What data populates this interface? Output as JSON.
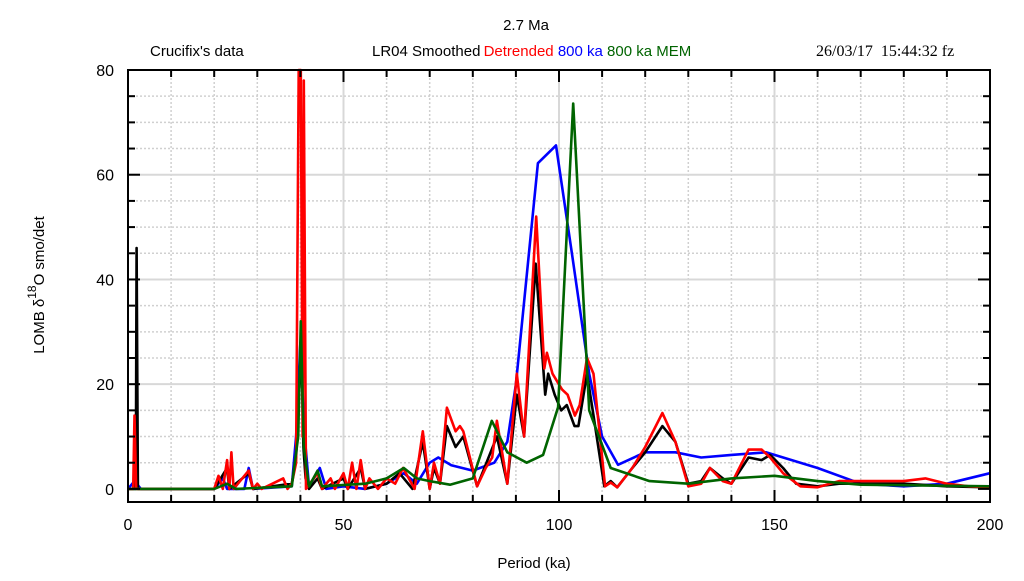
{
  "chart_data": {
    "type": "line",
    "title": "2.7 Ma",
    "left_note": "Crucifix's data",
    "timestamp": "26/03/17  15:44:32 fz",
    "xlabel": "Period (ka)",
    "ylabel_parts": [
      "LOMB δ",
      "18",
      "O smo/det"
    ],
    "xlim": [
      0,
      200
    ],
    "ylim": [
      -2.5,
      80
    ],
    "xticks": [
      0,
      50,
      100,
      150,
      200
    ],
    "yticks": [
      0,
      20,
      40,
      60,
      80
    ],
    "grid": true,
    "legend_position": "top",
    "series": [
      {
        "name": "LR04 Smoothed",
        "color": "#000000",
        "points": [
          [
            0,
            0
          ],
          [
            1.8,
            0
          ],
          [
            2,
            46
          ],
          [
            2.3,
            0
          ],
          [
            20,
            0
          ],
          [
            23,
            4
          ],
          [
            23.5,
            0
          ],
          [
            28,
            3
          ],
          [
            29,
            0
          ],
          [
            38,
            1
          ],
          [
            39,
            6
          ],
          [
            39.8,
            20
          ],
          [
            40.2,
            28
          ],
          [
            40.7,
            8
          ],
          [
            41.2,
            2
          ],
          [
            42,
            0
          ],
          [
            44,
            2
          ],
          [
            45,
            0
          ],
          [
            50,
            2
          ],
          [
            51,
            0
          ],
          [
            54,
            4
          ],
          [
            55,
            0
          ],
          [
            60,
            1
          ],
          [
            63,
            3
          ],
          [
            66,
            0
          ],
          [
            68.4,
            9
          ],
          [
            70,
            0
          ],
          [
            71,
            4
          ],
          [
            72.4,
            1
          ],
          [
            74,
            12
          ],
          [
            76,
            8
          ],
          [
            77.8,
            10
          ],
          [
            81,
            0.5
          ],
          [
            85.6,
            10
          ],
          [
            88,
            1
          ],
          [
            90.2,
            18
          ],
          [
            91.9,
            10
          ],
          [
            94.6,
            43
          ],
          [
            96.8,
            18
          ],
          [
            97.5,
            22
          ],
          [
            99,
            18
          ],
          [
            100.5,
            15
          ],
          [
            101.8,
            16
          ],
          [
            103.6,
            12
          ],
          [
            104.5,
            12
          ],
          [
            106.5,
            22
          ],
          [
            108,
            14
          ],
          [
            110.5,
            0.5
          ],
          [
            112,
            1.5
          ],
          [
            113.5,
            0.3
          ],
          [
            117,
            4
          ],
          [
            120,
            7
          ],
          [
            124,
            12
          ],
          [
            127,
            9
          ],
          [
            130,
            1
          ],
          [
            133,
            1.5
          ],
          [
            135,
            4
          ],
          [
            138,
            2
          ],
          [
            140,
            1
          ],
          [
            144,
            6
          ],
          [
            147,
            5.5
          ],
          [
            149,
            6.5
          ],
          [
            152,
            4
          ],
          [
            155,
            1
          ],
          [
            160,
            0.5
          ],
          [
            165,
            1
          ],
          [
            170,
            1
          ],
          [
            180,
            1
          ],
          [
            190,
            0.5
          ],
          [
            200,
            0.3
          ]
        ]
      },
      {
        "name": "Detrended",
        "color": "#ff0000",
        "points": [
          [
            0,
            0
          ],
          [
            1.2,
            0
          ],
          [
            1.5,
            14
          ],
          [
            1.9,
            0
          ],
          [
            20,
            0
          ],
          [
            21,
            2.5
          ],
          [
            22,
            0
          ],
          [
            23,
            5.5
          ],
          [
            23.5,
            0
          ],
          [
            24,
            7
          ],
          [
            24.5,
            0
          ],
          [
            28,
            3.5
          ],
          [
            29,
            0
          ],
          [
            30,
            1
          ],
          [
            31,
            0
          ],
          [
            36,
            2
          ],
          [
            37,
            0
          ],
          [
            38,
            1
          ],
          [
            39,
            5
          ],
          [
            39.6,
            80
          ],
          [
            40.1,
            80
          ],
          [
            40.5,
            10
          ],
          [
            40.8,
            78
          ],
          [
            41.3,
            0
          ],
          [
            44,
            3
          ],
          [
            45,
            0
          ],
          [
            47,
            2
          ],
          [
            48,
            0
          ],
          [
            50,
            3
          ],
          [
            51,
            0
          ],
          [
            52,
            5
          ],
          [
            53,
            0
          ],
          [
            54,
            5.5
          ],
          [
            55,
            0
          ],
          [
            56,
            2
          ],
          [
            58,
            0
          ],
          [
            60,
            2
          ],
          [
            62,
            1
          ],
          [
            63.8,
            4
          ],
          [
            66.5,
            0
          ],
          [
            68.4,
            11
          ],
          [
            70,
            0
          ],
          [
            71,
            5
          ],
          [
            72.4,
            1
          ],
          [
            74,
            15.5
          ],
          [
            76,
            11
          ],
          [
            77,
            12
          ],
          [
            77.8,
            11
          ],
          [
            81,
            0.5
          ],
          [
            83,
            4
          ],
          [
            84.5,
            6
          ],
          [
            85.6,
            13
          ],
          [
            88,
            1
          ],
          [
            90.2,
            22
          ],
          [
            91.9,
            10
          ],
          [
            94.7,
            52
          ],
          [
            96.6,
            23
          ],
          [
            97.2,
            26
          ],
          [
            98.5,
            22
          ],
          [
            100.7,
            19
          ],
          [
            102,
            18
          ],
          [
            103.7,
            14
          ],
          [
            104.8,
            16
          ],
          [
            106.5,
            25
          ],
          [
            108,
            22
          ],
          [
            110.7,
            0.5
          ],
          [
            112,
            1.2
          ],
          [
            113.5,
            0.3
          ],
          [
            117,
            4
          ],
          [
            120,
            8
          ],
          [
            124,
            14.5
          ],
          [
            127,
            9
          ],
          [
            130,
            0.5
          ],
          [
            133,
            1
          ],
          [
            135,
            4
          ],
          [
            138,
            1.5
          ],
          [
            140,
            1
          ],
          [
            144,
            7.5
          ],
          [
            147,
            7.5
          ],
          [
            149,
            6
          ],
          [
            152,
            3
          ],
          [
            156,
            0.5
          ],
          [
            160,
            0.3
          ],
          [
            165,
            1.5
          ],
          [
            170,
            1.5
          ],
          [
            180,
            1.5
          ],
          [
            185,
            2
          ],
          [
            190,
            1
          ],
          [
            195,
            0.5
          ],
          [
            200,
            0.3
          ]
        ]
      },
      {
        "name": "800 ka",
        "color": "#0000ff",
        "points": [
          [
            0,
            0
          ],
          [
            1.5,
            1.5
          ],
          [
            3,
            0
          ],
          [
            20,
            0
          ],
          [
            22,
            2
          ],
          [
            23,
            0
          ],
          [
            27,
            0
          ],
          [
            28,
            4
          ],
          [
            29,
            0
          ],
          [
            38,
            0.5
          ],
          [
            39,
            10
          ],
          [
            40,
            28
          ],
          [
            41,
            10
          ],
          [
            42,
            0.5
          ],
          [
            44.5,
            4
          ],
          [
            46,
            0
          ],
          [
            50,
            0.5
          ],
          [
            55,
            0
          ],
          [
            60,
            1
          ],
          [
            64,
            3
          ],
          [
            67,
            1
          ],
          [
            70,
            5
          ],
          [
            72,
            6
          ],
          [
            75,
            4.5
          ],
          [
            80,
            3.5
          ],
          [
            85,
            5
          ],
          [
            88,
            9
          ],
          [
            90,
            20
          ],
          [
            95.1,
            62.2
          ],
          [
            99.3,
            65.6
          ],
          [
            103,
            45
          ],
          [
            107,
            22
          ],
          [
            110,
            10
          ],
          [
            113.7,
            4.6
          ],
          [
            120,
            7
          ],
          [
            127,
            7
          ],
          [
            133,
            6
          ],
          [
            140,
            6.5
          ],
          [
            148,
            7
          ],
          [
            160,
            4
          ],
          [
            170,
            1
          ],
          [
            180,
            0.5
          ],
          [
            190,
            1
          ],
          [
            200,
            3
          ]
        ]
      },
      {
        "name": "800 ka MEM",
        "color": "#006400",
        "points": [
          [
            0,
            0
          ],
          [
            20,
            0
          ],
          [
            23,
            1
          ],
          [
            25,
            0
          ],
          [
            38,
            0.5
          ],
          [
            39.5,
            10
          ],
          [
            40.1,
            32
          ],
          [
            40.8,
            8
          ],
          [
            42,
            0.5
          ],
          [
            44,
            3.5
          ],
          [
            45,
            0.5
          ],
          [
            55,
            1
          ],
          [
            60,
            2
          ],
          [
            64,
            4
          ],
          [
            67,
            2
          ],
          [
            70,
            1.5
          ],
          [
            74.7,
            0.8
          ],
          [
            80,
            2
          ],
          [
            84.4,
            13
          ],
          [
            88,
            7
          ],
          [
            92.5,
            5
          ],
          [
            96.3,
            6.5
          ],
          [
            99.8,
            15.6
          ],
          [
            103.3,
            73.6
          ],
          [
            107,
            15
          ],
          [
            112,
            4
          ],
          [
            121,
            1.5
          ],
          [
            130,
            1
          ],
          [
            140,
            2
          ],
          [
            150,
            2.5
          ],
          [
            160,
            1.5
          ],
          [
            170,
            0.8
          ],
          [
            200,
            0.5
          ]
        ]
      }
    ]
  }
}
